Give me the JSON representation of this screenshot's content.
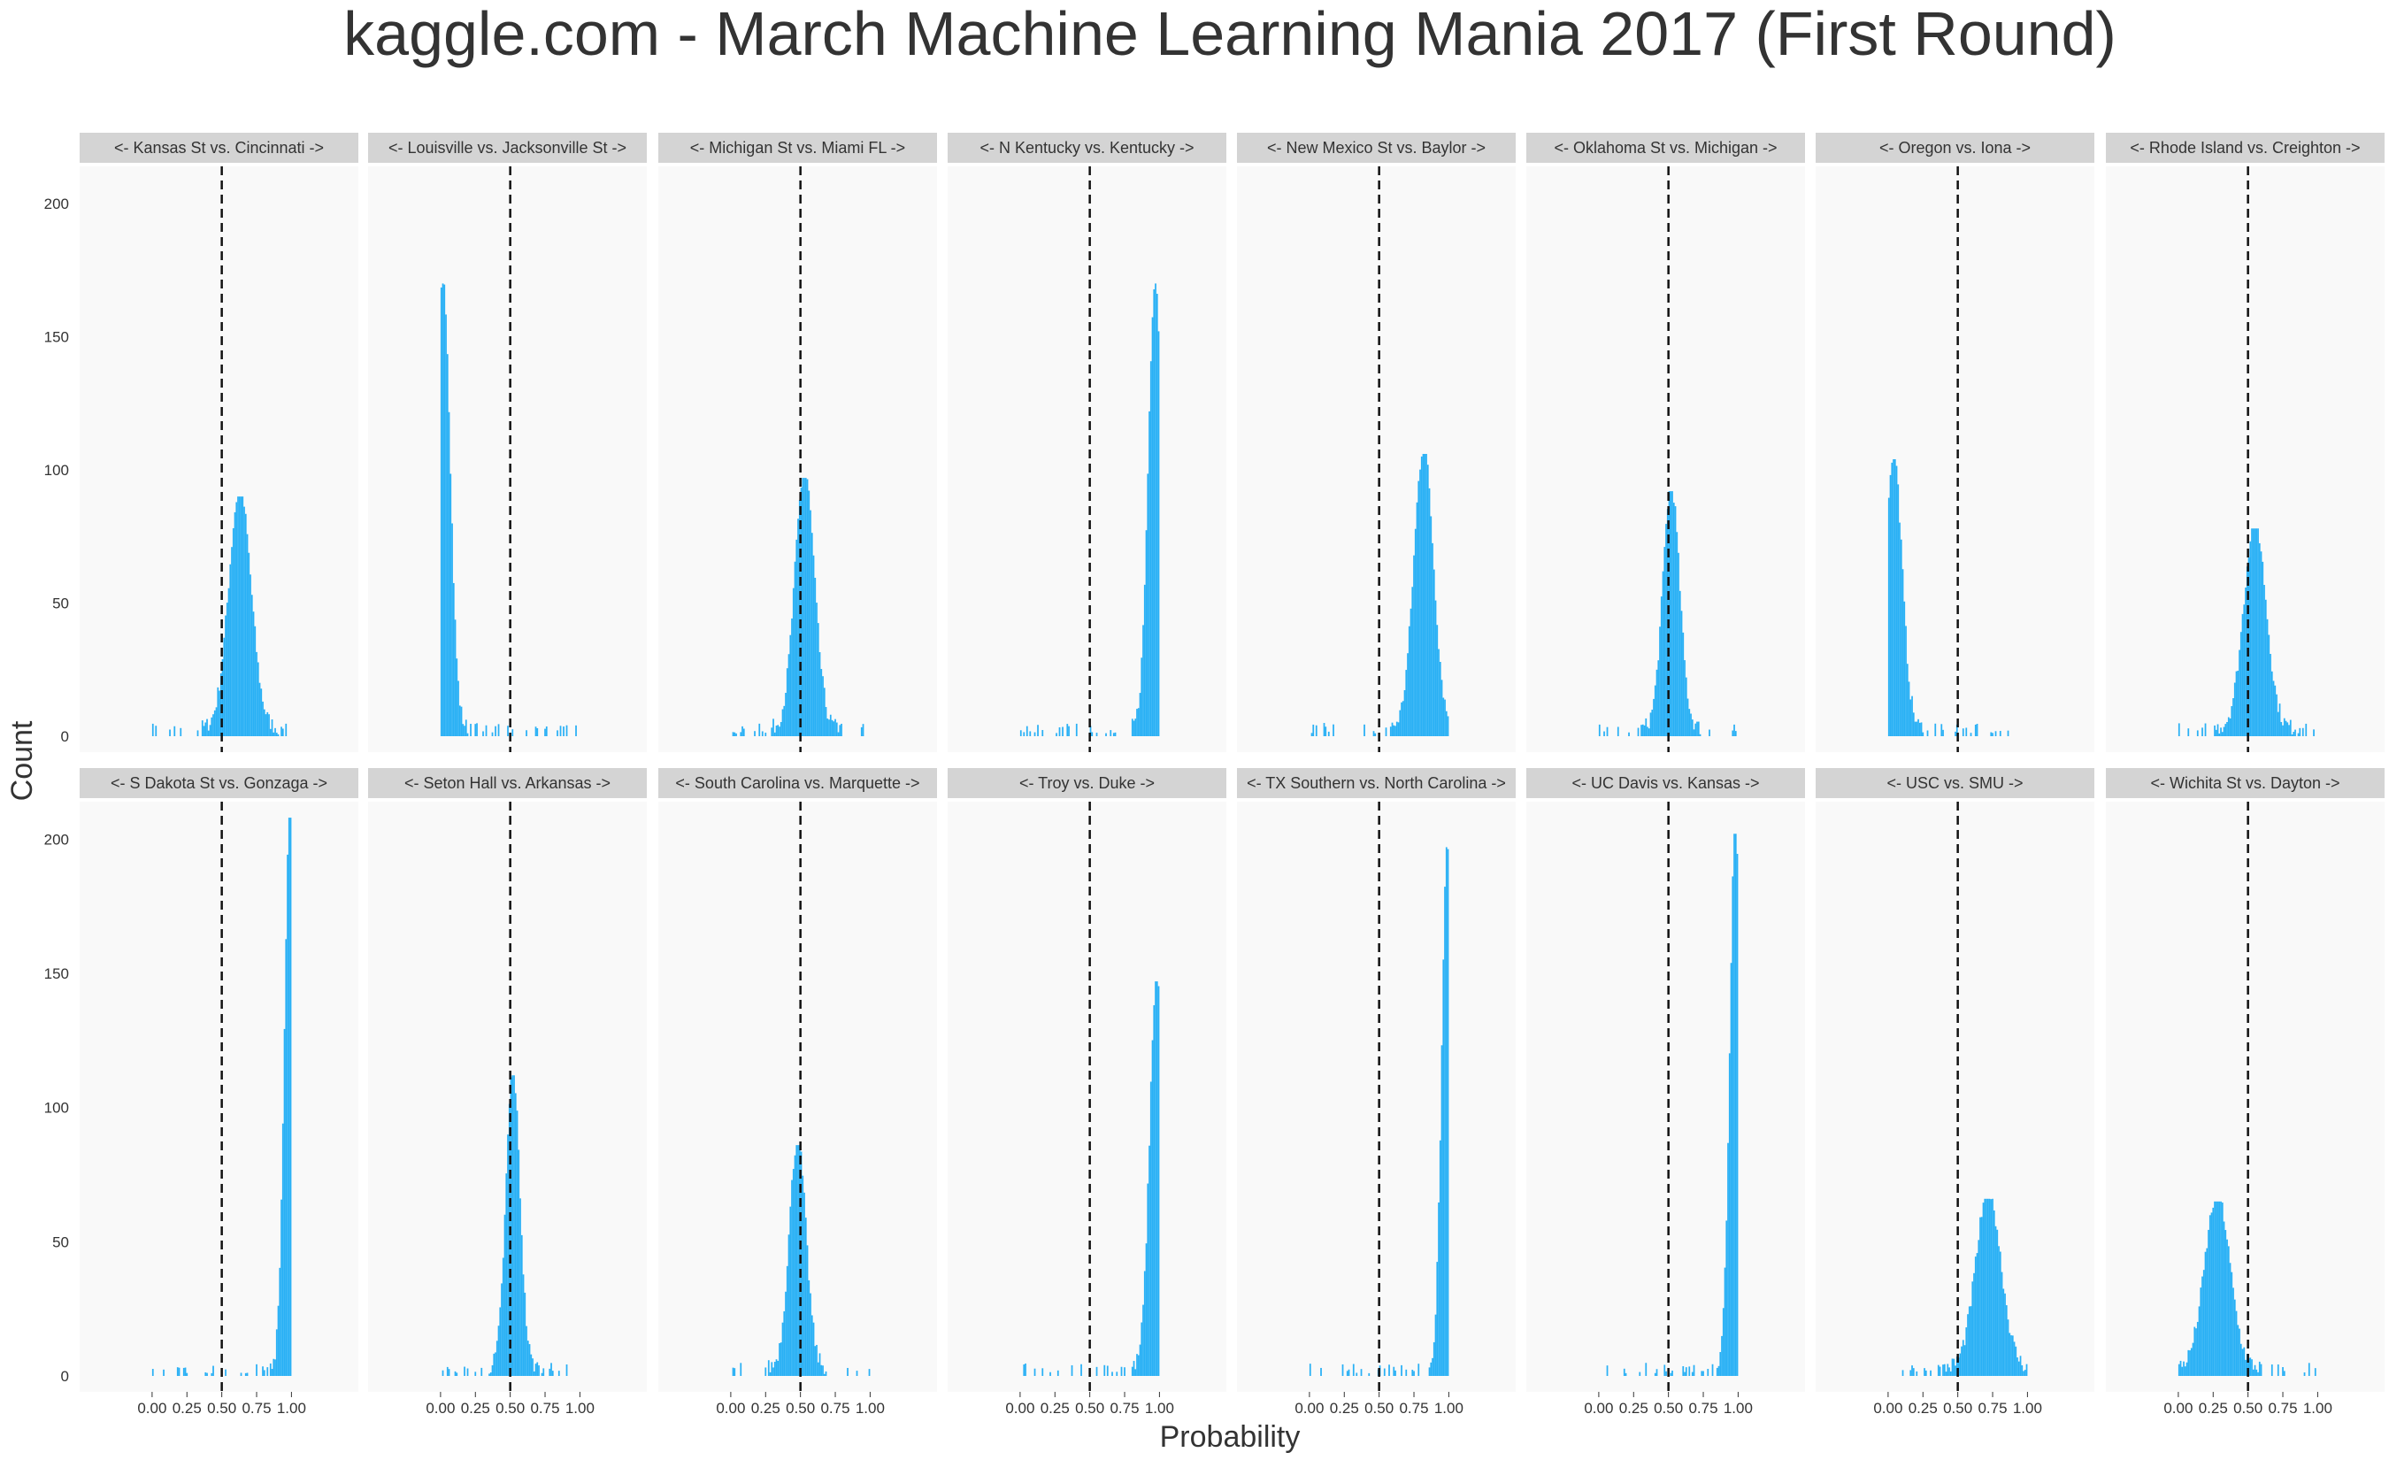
{
  "colors": {
    "bar": "#29b0f5",
    "panel_bg": "#f9f9f9",
    "strip_bg": "#d4d4d4",
    "ref_line": "#111111",
    "text": "#333333"
  },
  "chart_data": {
    "type": "histogram",
    "title": "kaggle.com - March Machine Learning Mania 2017 (First Round)",
    "xlabel": "Probability",
    "ylabel": "Count",
    "xlim": [
      0,
      1
    ],
    "ylim": [
      0,
      210
    ],
    "x_ticks": [
      0.0,
      0.25,
      0.5,
      0.75,
      1.0
    ],
    "x_tick_labels": [
      "0.00",
      "0.25",
      "0.50",
      "0.75",
      "1.00"
    ],
    "y_ticks": [
      0,
      50,
      100,
      150,
      200
    ],
    "y_tick_labels": [
      "0",
      "50",
      "100",
      "150",
      "200"
    ],
    "reference_line_x": 0.5,
    "grid": false,
    "panels": [
      {
        "label": "<- Kansas St vs. Cincinnati ->",
        "center": 0.63,
        "peak": 90,
        "spread": 0.08
      },
      {
        "label": "<- Louisville vs. Jacksonville St ->",
        "center": 0.02,
        "peak": 170,
        "spread": 0.05
      },
      {
        "label": "<- Michigan St vs. Miami FL ->",
        "center": 0.53,
        "peak": 97,
        "spread": 0.07
      },
      {
        "label": "<- N Kentucky vs. Kentucky ->",
        "center": 0.97,
        "peak": 170,
        "spread": 0.05
      },
      {
        "label": "<- New Mexico St vs. Baylor ->",
        "center": 0.82,
        "peak": 106,
        "spread": 0.07
      },
      {
        "label": "<- Oklahoma St vs. Michigan ->",
        "center": 0.52,
        "peak": 92,
        "spread": 0.06
      },
      {
        "label": "<- Oregon vs. Iona ->",
        "center": 0.04,
        "peak": 104,
        "spread": 0.06
      },
      {
        "label": "<- Rhode Island vs. Creighton ->",
        "center": 0.55,
        "peak": 78,
        "spread": 0.08
      },
      {
        "label": "<- S Dakota St vs. Gonzaga ->",
        "center": 0.99,
        "peak": 208,
        "spread": 0.04
      },
      {
        "label": "<- Seton Hall vs. Arkansas ->",
        "center": 0.52,
        "peak": 112,
        "spread": 0.05
      },
      {
        "label": "<- South Carolina vs. Marquette ->",
        "center": 0.48,
        "peak": 86,
        "spread": 0.06
      },
      {
        "label": "<- Troy vs. Duke ->",
        "center": 0.98,
        "peak": 147,
        "spread": 0.05
      },
      {
        "label": "<- TX Southern vs. North Carolina ->",
        "center": 0.99,
        "peak": 197,
        "spread": 0.04
      },
      {
        "label": "<- UC Davis vs. Kansas ->",
        "center": 0.98,
        "peak": 202,
        "spread": 0.04
      },
      {
        "label": "<- USC vs. SMU ->",
        "center": 0.72,
        "peak": 66,
        "spread": 0.09
      },
      {
        "label": "<- Wichita St vs. Dayton ->",
        "center": 0.28,
        "peak": 65,
        "spread": 0.09
      }
    ]
  }
}
